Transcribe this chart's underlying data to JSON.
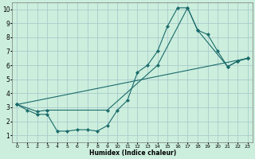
{
  "xlabel": "Humidex (Indice chaleur)",
  "bg_color": "#cceedd",
  "grid_color": "#aacccc",
  "line_color": "#1a6b6b",
  "xlim": [
    -0.5,
    23.5
  ],
  "ylim": [
    0.5,
    10.5
  ],
  "yticks": [
    1,
    2,
    3,
    4,
    5,
    6,
    7,
    8,
    9,
    10
  ],
  "xticks": [
    0,
    1,
    2,
    3,
    4,
    5,
    6,
    7,
    8,
    9,
    10,
    11,
    12,
    13,
    14,
    15,
    16,
    17,
    18,
    19,
    20,
    21,
    22,
    23
  ],
  "line1_x": [
    0,
    1,
    2,
    3,
    4,
    5,
    6,
    7,
    8,
    9,
    10,
    11,
    12,
    13,
    14,
    15,
    16,
    17,
    18,
    19,
    20,
    21,
    22,
    23
  ],
  "line1_y": [
    3.2,
    2.8,
    2.5,
    2.5,
    1.3,
    1.3,
    1.4,
    1.4,
    1.3,
    1.7,
    2.8,
    3.5,
    5.5,
    6.0,
    7.0,
    8.8,
    10.1,
    10.1,
    8.5,
    8.2,
    7.0,
    5.9,
    6.3,
    6.5
  ],
  "line2_x": [
    0,
    2,
    3,
    9,
    14,
    17,
    18,
    21,
    22,
    23
  ],
  "line2_y": [
    3.2,
    2.7,
    2.8,
    2.8,
    6.0,
    10.1,
    8.5,
    5.9,
    6.3,
    6.5
  ],
  "line3_x": [
    0,
    23
  ],
  "line3_y": [
    3.2,
    6.5
  ]
}
